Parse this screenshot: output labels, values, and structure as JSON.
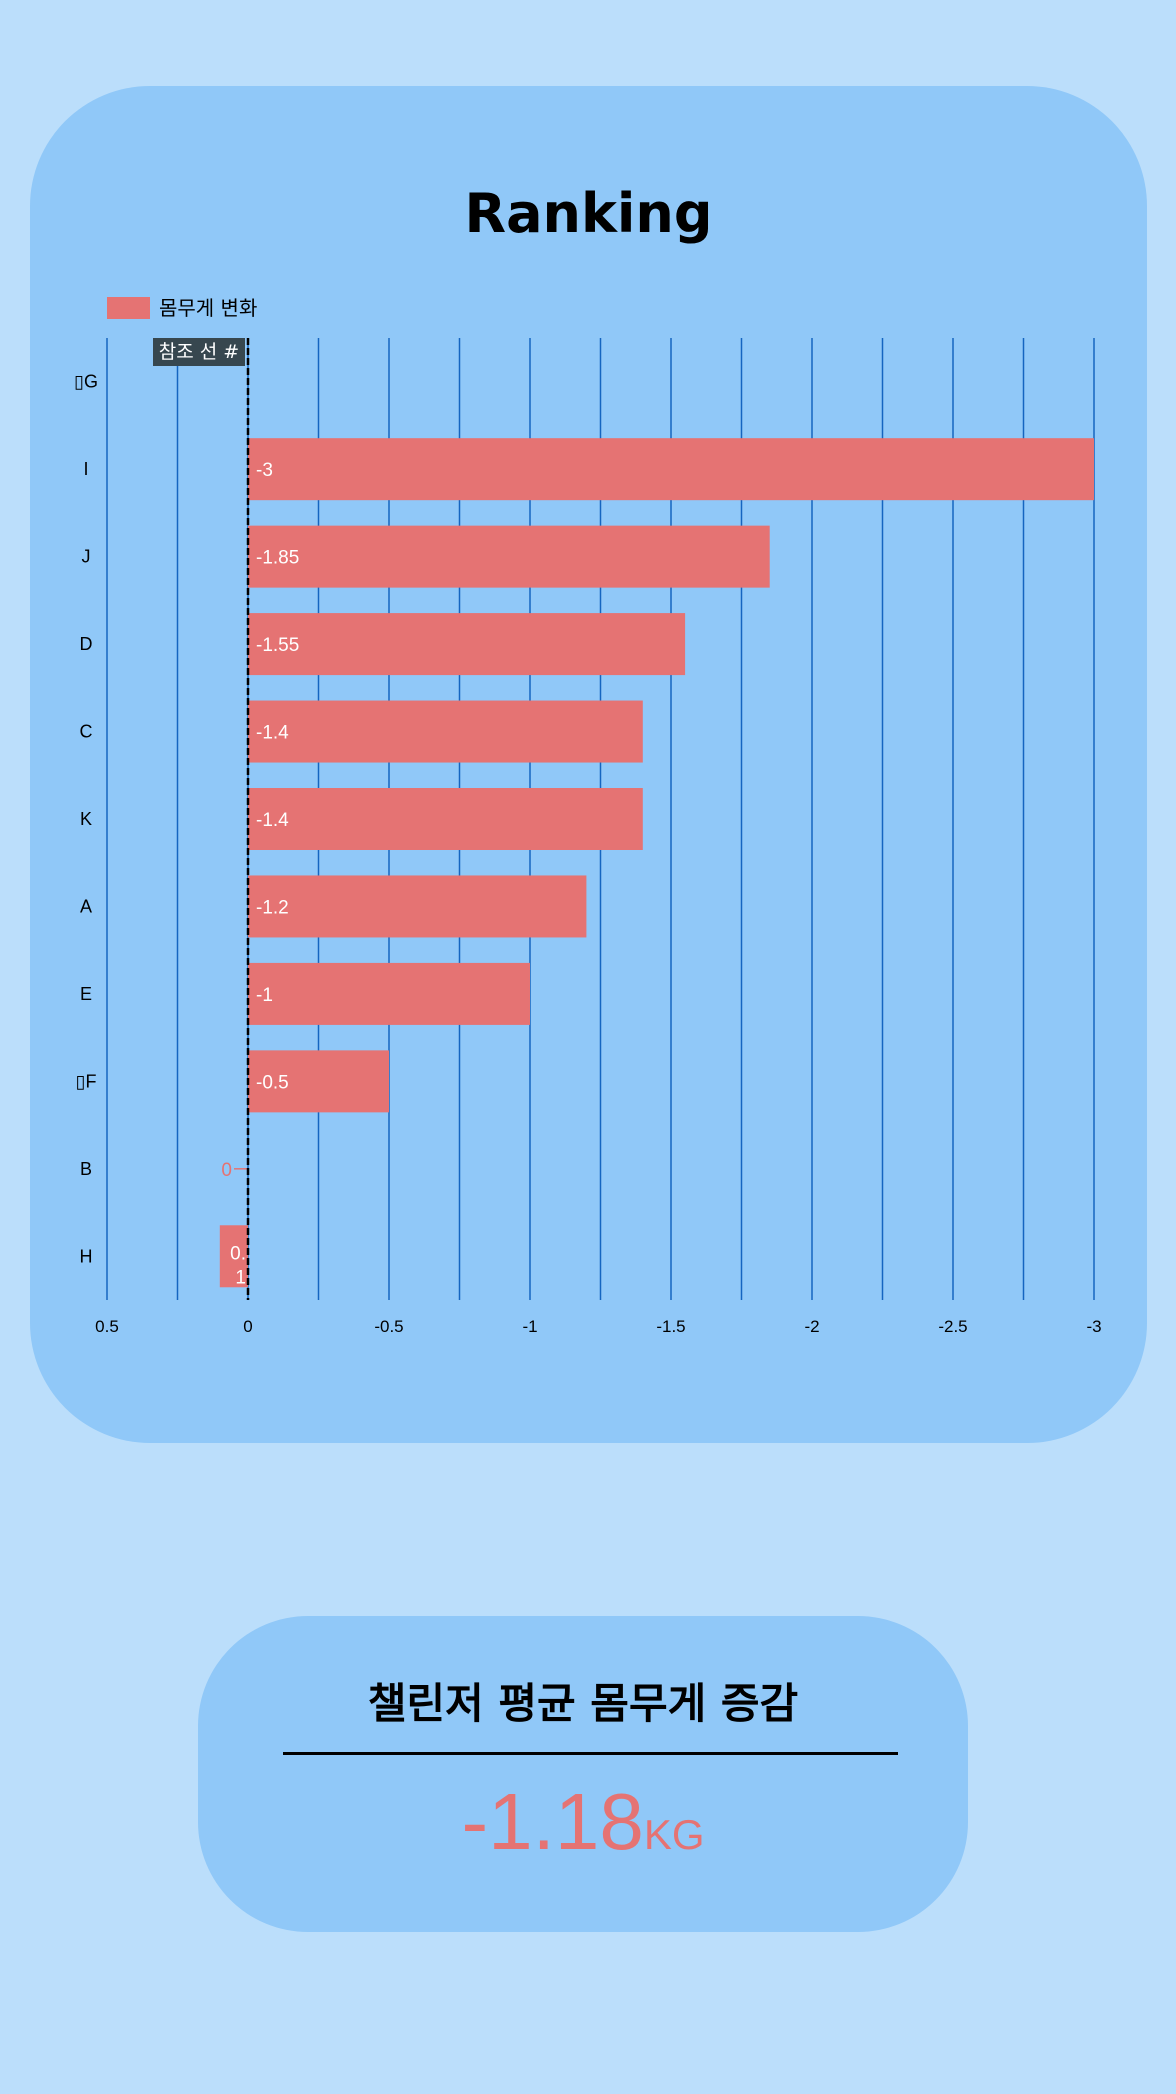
{
  "chart_data": {
    "type": "bar",
    "orientation": "horizontal",
    "title": "Ranking",
    "categories": [
      "G",
      "I",
      "J",
      "D",
      "C",
      "K",
      "A",
      "E",
      "F",
      "B",
      "H"
    ],
    "category_prefix_glyph": "▯",
    "prefixed_categories": [
      "G",
      "F"
    ],
    "series": [
      {
        "name": "몸무게 변화",
        "values": [
          null,
          -3,
          -1.85,
          -1.55,
          -1.4,
          -1.4,
          -1.2,
          -1,
          -0.5,
          0,
          0.1
        ]
      }
    ],
    "value_labels": [
      "",
      "-3",
      "-1.85",
      "-1.55",
      "-1.4",
      "-1.4",
      "-1.2",
      "-1",
      "-0.5",
      "0",
      "0.1"
    ],
    "xlim": [
      0.5,
      -3
    ],
    "x_ticks": [
      0.5,
      0,
      -0.5,
      -1,
      -1.5,
      -2,
      -2.5,
      -3
    ],
    "x_tick_labels": [
      "0.5",
      "0",
      "-0.5",
      "-1",
      "-1.5",
      "-2",
      "-2.5",
      "-3"
    ],
    "x_axis_reversed": true,
    "grid": true,
    "reference_line": {
      "value": 0,
      "label": "참조 선 #",
      "style": "dashed"
    },
    "legend": "top-left"
  },
  "colors": {
    "background": "#bbdefb",
    "card": "#90c8f8",
    "bar": "#e57373",
    "grid": "#1565c0",
    "reference_label_bg": "#37474f"
  },
  "summary": {
    "title": "챌린저 평균 몸무게 증감",
    "value": "-1.18",
    "unit": "KG"
  }
}
